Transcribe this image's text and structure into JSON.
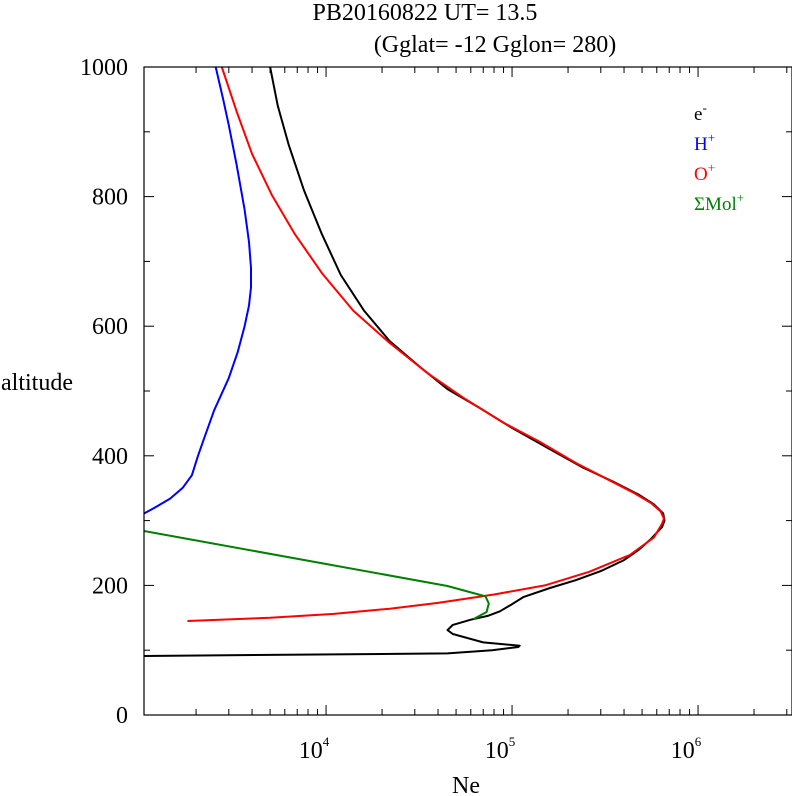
{
  "chart_data": {
    "type": "line",
    "title": "PB20160822   UT=  13.5",
    "subtitle": "(Gglat= -12   Gglon=  280)",
    "xlabel": "Ne",
    "ylabel": "altitude",
    "xscale": "log",
    "xlim": [
      1050,
      3200000
    ],
    "ylim": [
      0,
      1000
    ],
    "yticks": [
      "0",
      "200",
      "400",
      "600",
      "800",
      "1000"
    ],
    "xticks": [
      {
        "base": "10",
        "exp": "4"
      },
      {
        "base": "10",
        "exp": "5"
      },
      {
        "base": "10",
        "exp": "6"
      }
    ],
    "grid": false,
    "legend_position": "top-right",
    "series": [
      {
        "name": "e-",
        "label_base": "e",
        "label_sup": "-",
        "color": "#000000",
        "points": [
          [
            1050,
            91
          ],
          [
            45000,
            95
          ],
          [
            78000,
            100
          ],
          [
            108000,
            105
          ],
          [
            110000,
            107
          ],
          [
            70000,
            112
          ],
          [
            48000,
            125
          ],
          [
            45000,
            131
          ],
          [
            48000,
            139
          ],
          [
            60000,
            147
          ],
          [
            74000,
            153
          ],
          [
            86000,
            160
          ],
          [
            100000,
            171
          ],
          [
            115000,
            182
          ],
          [
            160000,
            196
          ],
          [
            220000,
            208
          ],
          [
            300000,
            222
          ],
          [
            400000,
            239
          ],
          [
            480000,
            255
          ],
          [
            560000,
            272
          ],
          [
            640000,
            290
          ],
          [
            660000,
            300
          ],
          [
            650000,
            311
          ],
          [
            580000,
            325
          ],
          [
            480000,
            340
          ],
          [
            350000,
            360
          ],
          [
            240000,
            382
          ],
          [
            160000,
            410
          ],
          [
            100000,
            443
          ],
          [
            66000,
            475
          ],
          [
            45000,
            503
          ],
          [
            32000,
            537
          ],
          [
            22000,
            577
          ],
          [
            16000,
            624
          ],
          [
            12000,
            679
          ],
          [
            9500,
            742
          ],
          [
            7600,
            810
          ],
          [
            6300,
            880
          ],
          [
            5500,
            940
          ],
          [
            5000,
            1000
          ]
        ]
      },
      {
        "name": "H+",
        "label_base": "H",
        "label_sup": "+",
        "color": "#0000ff",
        "points": [
          [
            1050,
            311
          ],
          [
            1200,
            320
          ],
          [
            1450,
            334
          ],
          [
            1700,
            351
          ],
          [
            1900,
            370
          ],
          [
            2050,
            400
          ],
          [
            2200,
            425
          ],
          [
            2500,
            470
          ],
          [
            3000,
            520
          ],
          [
            3350,
            560
          ],
          [
            3650,
            600
          ],
          [
            3850,
            632
          ],
          [
            3950,
            660
          ],
          [
            3950,
            690
          ],
          [
            3850,
            730
          ],
          [
            3650,
            780
          ],
          [
            3300,
            850
          ],
          [
            3000,
            910
          ],
          [
            2800,
            950
          ],
          [
            2550,
            1000
          ]
        ]
      },
      {
        "name": "O+",
        "label_base": "O",
        "label_sup": "+",
        "color": "#ff0000",
        "points": [
          [
            1800,
            145
          ],
          [
            5000,
            150
          ],
          [
            11000,
            156
          ],
          [
            22000,
            164
          ],
          [
            40000,
            173
          ],
          [
            80000,
            186
          ],
          [
            150000,
            200
          ],
          [
            260000,
            221
          ],
          [
            430000,
            247
          ],
          [
            580000,
            274
          ],
          [
            640000,
            295
          ],
          [
            655000,
            303
          ],
          [
            630000,
            314
          ],
          [
            560000,
            327
          ],
          [
            450000,
            343
          ],
          [
            330000,
            363
          ],
          [
            220000,
            389
          ],
          [
            140000,
            422
          ],
          [
            90000,
            451
          ],
          [
            55000,
            489
          ],
          [
            35000,
            528
          ],
          [
            22000,
            574
          ],
          [
            14000,
            624
          ],
          [
            9500,
            682
          ],
          [
            6800,
            742
          ],
          [
            5100,
            803
          ],
          [
            4000,
            866
          ],
          [
            3300,
            932
          ],
          [
            2750,
            1000
          ]
        ]
      },
      {
        "name": "ΣMol+",
        "label_base": "ΣMol",
        "label_sup": "+",
        "color": "#008000",
        "points": [
          [
            1050,
            284
          ],
          [
            45000,
            199
          ],
          [
            72000,
            183
          ],
          [
            75000,
            172
          ],
          [
            73000,
            159
          ],
          [
            62000,
            148
          ]
        ]
      }
    ]
  }
}
